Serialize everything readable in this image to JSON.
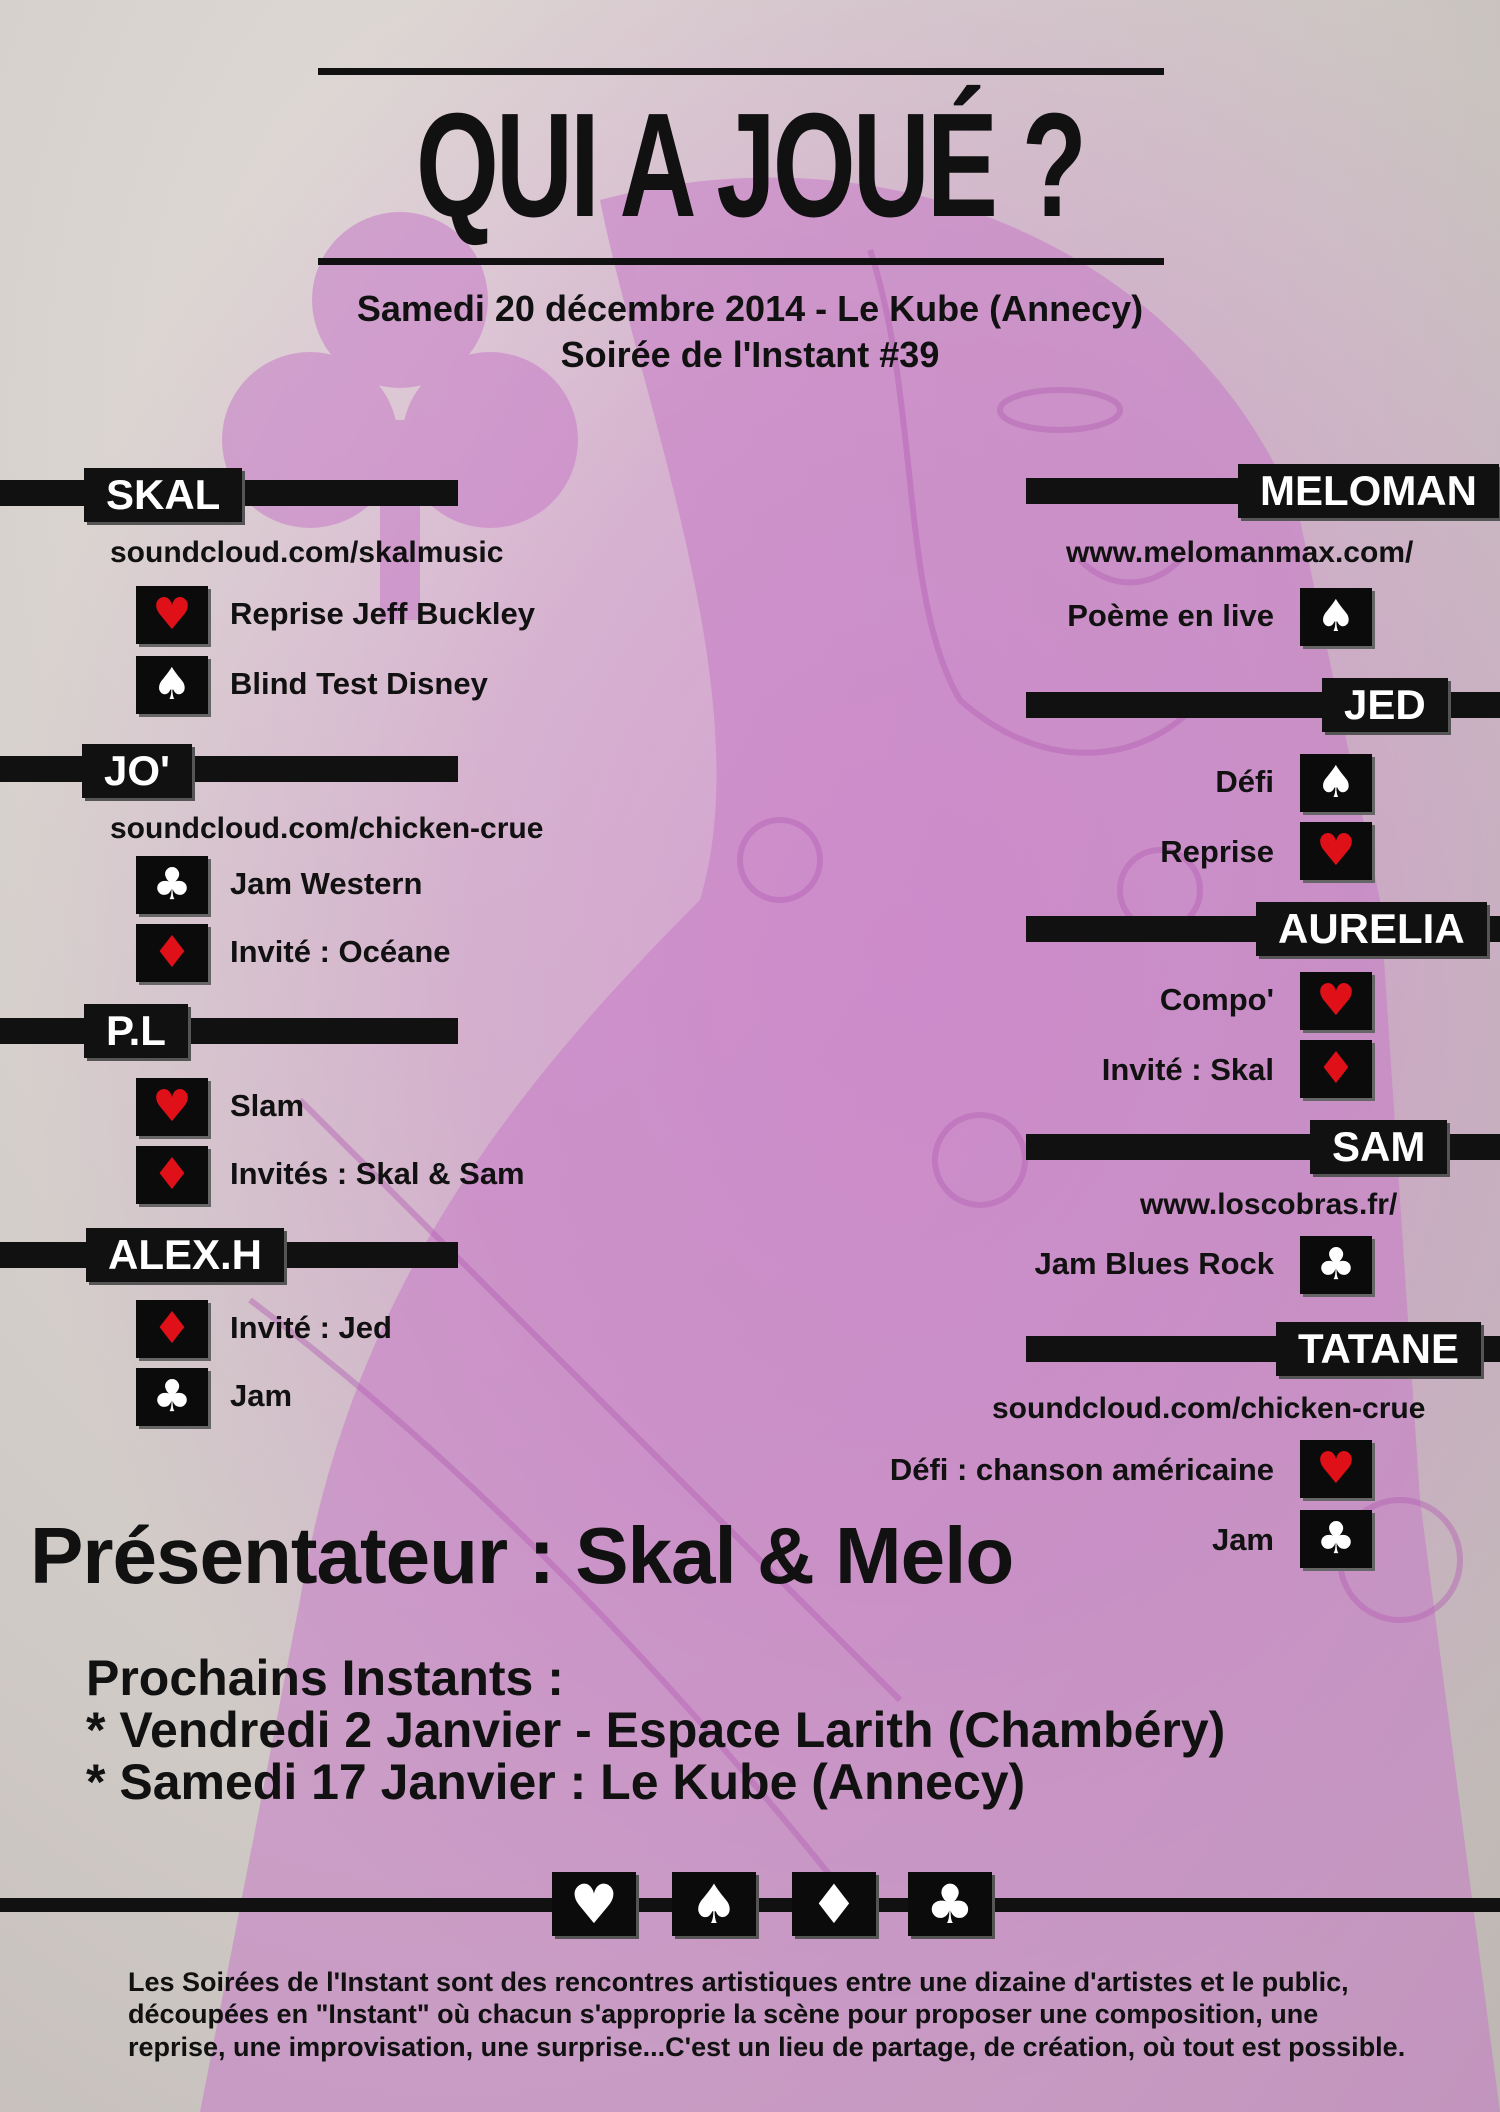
{
  "header": {
    "title": "QUI A JOUÉ ?",
    "date_line": "Samedi 20 décembre 2014 - Le Kube (Annecy)",
    "event_line": "Soirée de l'Instant #39"
  },
  "left_artists": [
    {
      "name": "SKAL",
      "link": "soundcloud.com/skalmusic",
      "acts": [
        {
          "label": "Reprise Jeff Buckley",
          "suit": "♥",
          "suit_icon": "heart-icon",
          "color": "red"
        },
        {
          "label": "Blind Test Disney",
          "suit": "♠",
          "suit_icon": "spade-icon",
          "color": "white"
        }
      ]
    },
    {
      "name": "JO'",
      "link": "soundcloud.com/chicken-crue",
      "acts": [
        {
          "label": "Jam Western",
          "suit": "♣",
          "suit_icon": "club-icon",
          "color": "white"
        },
        {
          "label": "Invité : Océane",
          "suit": "♦",
          "suit_icon": "diamond-icon",
          "color": "red"
        }
      ]
    },
    {
      "name": "P.L",
      "link": "",
      "acts": [
        {
          "label": "Slam",
          "suit": "♥",
          "suit_icon": "heart-icon",
          "color": "red"
        },
        {
          "label": "Invités : Skal & Sam",
          "suit": "♦",
          "suit_icon": "diamond-icon",
          "color": "red"
        }
      ]
    },
    {
      "name": "ALEX.H",
      "link": "",
      "acts": [
        {
          "label": "Invité : Jed",
          "suit": "♦",
          "suit_icon": "diamond-icon",
          "color": "red"
        },
        {
          "label": "Jam",
          "suit": "♣",
          "suit_icon": "club-icon",
          "color": "white"
        }
      ]
    }
  ],
  "right_artists": [
    {
      "name": "MELOMAN",
      "link": "www.melomanmax.com/",
      "acts": [
        {
          "label": "Poème en live",
          "suit": "♠",
          "suit_icon": "spade-icon",
          "color": "white"
        }
      ]
    },
    {
      "name": "JED",
      "link": "",
      "acts": [
        {
          "label": "Défi",
          "suit": "♠",
          "suit_icon": "spade-icon",
          "color": "white"
        },
        {
          "label": "Reprise",
          "suit": "♥",
          "suit_icon": "heart-icon",
          "color": "red"
        }
      ]
    },
    {
      "name": "AURELIA",
      "link": "",
      "acts": [
        {
          "label": "Compo'",
          "suit": "♥",
          "suit_icon": "heart-icon",
          "color": "red"
        },
        {
          "label": "Invité : Skal",
          "suit": "♦",
          "suit_icon": "diamond-icon",
          "color": "red"
        }
      ]
    },
    {
      "name": "SAM",
      "link": "www.loscobras.fr/",
      "acts": [
        {
          "label": "Jam Blues Rock",
          "suit": "♣",
          "suit_icon": "club-icon",
          "color": "white"
        }
      ]
    },
    {
      "name": "TATANE",
      "link": "soundcloud.com/chicken-crue",
      "acts": [
        {
          "label": "Défi : chanson américaine",
          "suit": "♥",
          "suit_icon": "heart-icon",
          "color": "red"
        },
        {
          "label": "Jam",
          "suit": "♣",
          "suit_icon": "club-icon",
          "color": "white"
        }
      ]
    }
  ],
  "presenter": "Présentateur : Skal & Melo",
  "next_events": {
    "heading": "Prochains Instants :",
    "items": [
      "* Vendredi 2 Janvier - Espace Larith (Chambéry)",
      "* Samedi 17 Janvier : Le Kube (Annecy)"
    ]
  },
  "bottom_suits": [
    {
      "symbol": "♥",
      "icon": "heart-icon"
    },
    {
      "symbol": "♠",
      "icon": "spade-icon"
    },
    {
      "symbol": "♦",
      "icon": "diamond-icon"
    },
    {
      "symbol": "♣",
      "icon": "club-icon"
    }
  ],
  "footer_text": "Les Soirées de l'Instant sont des rencontres artistiques entre une dizaine d'artistes et le public, découpées en \"Instant\" où chacun s'approprie la scène pour proposer une composition, une reprise, une improvisation, une surprise...C'est un lieu de partage, de création, où tout est possible.",
  "colors": {
    "ink": "#111111",
    "suit_red": "#e01018",
    "background_purple": "#c86ec8",
    "background_grey": "#cfc9c5"
  }
}
